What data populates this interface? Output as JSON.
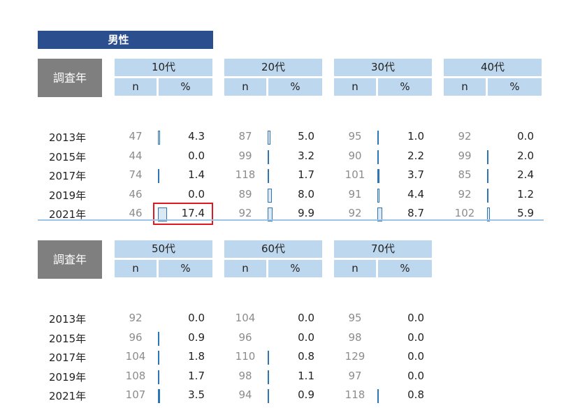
{
  "gender_label": "男性",
  "year_header": "調査年",
  "n_label": "n",
  "pct_label": "%",
  "years": [
    "2013年",
    "2015年",
    "2017年",
    "2019年",
    "2021年"
  ],
  "top_groups": [
    {
      "age": "10代",
      "rows": [
        {
          "n": "47",
          "pct": "4.3"
        },
        {
          "n": "44",
          "pct": "0.0"
        },
        {
          "n": "74",
          "pct": "1.4"
        },
        {
          "n": "46",
          "pct": "0.0"
        },
        {
          "n": "46",
          "pct": "17.4"
        }
      ]
    },
    {
      "age": "20代",
      "rows": [
        {
          "n": "87",
          "pct": "5.0"
        },
        {
          "n": "99",
          "pct": "3.2"
        },
        {
          "n": "118",
          "pct": "1.7"
        },
        {
          "n": "89",
          "pct": "8.0"
        },
        {
          "n": "92",
          "pct": "9.9"
        }
      ]
    },
    {
      "age": "30代",
      "rows": [
        {
          "n": "95",
          "pct": "1.0"
        },
        {
          "n": "90",
          "pct": "2.2"
        },
        {
          "n": "101",
          "pct": "3.7"
        },
        {
          "n": "91",
          "pct": "4.4"
        },
        {
          "n": "92",
          "pct": "8.7"
        }
      ]
    },
    {
      "age": "40代",
      "rows": [
        {
          "n": "92",
          "pct": "0.0"
        },
        {
          "n": "99",
          "pct": "2.0"
        },
        {
          "n": "85",
          "pct": "2.4"
        },
        {
          "n": "92",
          "pct": "1.2"
        },
        {
          "n": "102",
          "pct": "5.9"
        }
      ]
    }
  ],
  "bottom_groups": [
    {
      "age": "50代",
      "rows": [
        {
          "n": "92",
          "pct": "0.0"
        },
        {
          "n": "96",
          "pct": "0.9"
        },
        {
          "n": "104",
          "pct": "1.8"
        },
        {
          "n": "108",
          "pct": "1.7"
        },
        {
          "n": "107",
          "pct": "3.5"
        }
      ]
    },
    {
      "age": "60代",
      "rows": [
        {
          "n": "104",
          "pct": "0.0"
        },
        {
          "n": "96",
          "pct": "0.0"
        },
        {
          "n": "110",
          "pct": "0.8"
        },
        {
          "n": "98",
          "pct": "1.1"
        },
        {
          "n": "94",
          "pct": "0.9"
        }
      ]
    },
    {
      "age": "70代",
      "rows": [
        {
          "n": "95",
          "pct": "0.0"
        },
        {
          "n": "98",
          "pct": "0.0"
        },
        {
          "n": "129",
          "pct": "0.0"
        },
        {
          "n": "97",
          "pct": "0.0"
        },
        {
          "n": "118",
          "pct": "0.8"
        }
      ]
    }
  ],
  "highlighted": {
    "table": "top",
    "group": 0,
    "row": 4
  },
  "colors": {
    "header_dark": "#2b4f8e",
    "header_light": "#bdd7ee",
    "year_header": "#7f7f7f",
    "bar": "#2e75b6",
    "highlight": "#e0191e"
  }
}
